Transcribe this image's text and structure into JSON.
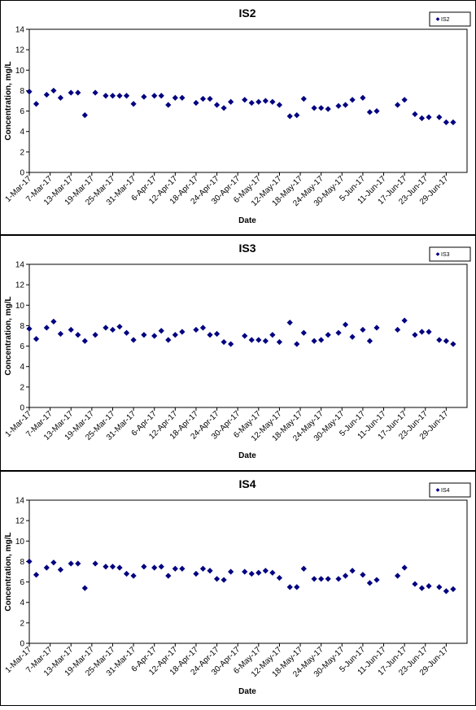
{
  "chart_data": [
    {
      "type": "scatter",
      "title": "IS2",
      "xlabel": "Date",
      "ylabel": "Concentration, mg/L",
      "ylim": [
        0,
        14
      ],
      "yticks": [
        "0",
        "2",
        "4",
        "6",
        "8",
        "10",
        "12",
        "14"
      ],
      "xticks": [
        "1-Mar-17",
        "7-Mar-17",
        "13-Mar-17",
        "19-Mar-17",
        "25-Mar-17",
        "31-Mar-17",
        "6-Apr-17",
        "12-Apr-17",
        "18-Apr-17",
        "24-Apr-17",
        "30-Apr-17",
        "6-May-17",
        "12-May-17",
        "18-May-17",
        "24-May-17",
        "30-May-17",
        "5-Jun-17",
        "11-Jun-17",
        "17-Jun-17",
        "23-Jun-17",
        "29-Jun-17"
      ],
      "legend": "top-right",
      "series": [
        {
          "name": "IS2",
          "color": "#000080",
          "marker": "diamond",
          "points": [
            [
              "1-Mar-17",
              7.9
            ],
            [
              "3-Mar-17",
              6.7
            ],
            [
              "6-Mar-17",
              7.6
            ],
            [
              "8-Mar-17",
              8.0
            ],
            [
              "10-Mar-17",
              7.3
            ],
            [
              "13-Mar-17",
              7.8
            ],
            [
              "15-Mar-17",
              7.8
            ],
            [
              "17-Mar-17",
              5.6
            ],
            [
              "20-Mar-17",
              7.8
            ],
            [
              "23-Mar-17",
              7.5
            ],
            [
              "25-Mar-17",
              7.5
            ],
            [
              "27-Mar-17",
              7.5
            ],
            [
              "29-Mar-17",
              7.5
            ],
            [
              "31-Mar-17",
              6.7
            ],
            [
              "3-Apr-17",
              7.4
            ],
            [
              "6-Apr-17",
              7.5
            ],
            [
              "8-Apr-17",
              7.5
            ],
            [
              "10-Apr-17",
              6.6
            ],
            [
              "12-Apr-17",
              7.3
            ],
            [
              "14-Apr-17",
              7.3
            ],
            [
              "18-Apr-17",
              6.8
            ],
            [
              "20-Apr-17",
              7.2
            ],
            [
              "22-Apr-17",
              7.2
            ],
            [
              "24-Apr-17",
              6.6
            ],
            [
              "26-Apr-17",
              6.3
            ],
            [
              "28-Apr-17",
              6.9
            ],
            [
              "2-May-17",
              7.1
            ],
            [
              "4-May-17",
              6.8
            ],
            [
              "6-May-17",
              6.9
            ],
            [
              "8-May-17",
              7.0
            ],
            [
              "10-May-17",
              6.9
            ],
            [
              "12-May-17",
              6.6
            ],
            [
              "15-May-17",
              5.5
            ],
            [
              "17-May-17",
              5.6
            ],
            [
              "19-May-17",
              7.2
            ],
            [
              "22-May-17",
              6.3
            ],
            [
              "24-May-17",
              6.3
            ],
            [
              "26-May-17",
              6.2
            ],
            [
              "29-May-17",
              6.5
            ],
            [
              "31-May-17",
              6.6
            ],
            [
              "2-Jun-17",
              7.1
            ],
            [
              "5-Jun-17",
              7.3
            ],
            [
              "7-Jun-17",
              5.9
            ],
            [
              "9-Jun-17",
              6.0
            ],
            [
              "15-Jun-17",
              6.6
            ],
            [
              "17-Jun-17",
              7.1
            ],
            [
              "20-Jun-17",
              5.7
            ],
            [
              "22-Jun-17",
              5.3
            ],
            [
              "24-Jun-17",
              5.4
            ],
            [
              "27-Jun-17",
              5.4
            ],
            [
              "29-Jun-17",
              4.9
            ],
            [
              "1-Jul-17",
              4.9
            ]
          ]
        }
      ]
    },
    {
      "type": "scatter",
      "title": "IS3",
      "xlabel": "Date",
      "ylabel": "Concentration, mg/L",
      "ylim": [
        0,
        14
      ],
      "yticks": [
        "0",
        "2",
        "4",
        "6",
        "8",
        "10",
        "12",
        "14"
      ],
      "xticks": [
        "1-Mar-17",
        "7-Mar-17",
        "13-Mar-17",
        "19-Mar-17",
        "25-Mar-17",
        "31-Mar-17",
        "6-Apr-17",
        "12-Apr-17",
        "18-Apr-17",
        "24-Apr-17",
        "30-Apr-17",
        "6-May-17",
        "12-May-17",
        "18-May-17",
        "24-May-17",
        "30-May-17",
        "5-Jun-17",
        "11-Jun-17",
        "17-Jun-17",
        "23-Jun-17",
        "29-Jun-17"
      ],
      "legend": "top-right",
      "series": [
        {
          "name": "IS3",
          "color": "#000080",
          "marker": "diamond",
          "points": [
            [
              "1-Mar-17",
              7.7
            ],
            [
              "3-Mar-17",
              6.7
            ],
            [
              "6-Mar-17",
              7.8
            ],
            [
              "8-Mar-17",
              8.4
            ],
            [
              "10-Mar-17",
              7.2
            ],
            [
              "13-Mar-17",
              7.6
            ],
            [
              "15-Mar-17",
              7.1
            ],
            [
              "17-Mar-17",
              6.5
            ],
            [
              "20-Mar-17",
              7.1
            ],
            [
              "23-Mar-17",
              7.8
            ],
            [
              "25-Mar-17",
              7.6
            ],
            [
              "27-Mar-17",
              7.9
            ],
            [
              "29-Mar-17",
              7.3
            ],
            [
              "31-Mar-17",
              6.6
            ],
            [
              "3-Apr-17",
              7.1
            ],
            [
              "6-Apr-17",
              7.0
            ],
            [
              "8-Apr-17",
              7.5
            ],
            [
              "10-Apr-17",
              6.6
            ],
            [
              "12-Apr-17",
              7.1
            ],
            [
              "14-Apr-17",
              7.4
            ],
            [
              "18-Apr-17",
              7.6
            ],
            [
              "20-Apr-17",
              7.8
            ],
            [
              "22-Apr-17",
              7.1
            ],
            [
              "24-Apr-17",
              7.2
            ],
            [
              "26-Apr-17",
              6.4
            ],
            [
              "28-Apr-17",
              6.2
            ],
            [
              "2-May-17",
              7.0
            ],
            [
              "4-May-17",
              6.6
            ],
            [
              "6-May-17",
              6.6
            ],
            [
              "8-May-17",
              6.5
            ],
            [
              "10-May-17",
              7.1
            ],
            [
              "12-May-17",
              6.4
            ],
            [
              "15-May-17",
              8.3
            ],
            [
              "17-May-17",
              6.2
            ],
            [
              "19-May-17",
              7.3
            ],
            [
              "22-May-17",
              6.5
            ],
            [
              "24-May-17",
              6.6
            ],
            [
              "26-May-17",
              7.1
            ],
            [
              "29-May-17",
              7.3
            ],
            [
              "31-May-17",
              8.1
            ],
            [
              "2-Jun-17",
              6.9
            ],
            [
              "5-Jun-17",
              7.6
            ],
            [
              "7-Jun-17",
              6.5
            ],
            [
              "9-Jun-17",
              7.8
            ],
            [
              "15-Jun-17",
              7.6
            ],
            [
              "17-Jun-17",
              8.5
            ],
            [
              "20-Jun-17",
              7.1
            ],
            [
              "22-Jun-17",
              7.4
            ],
            [
              "24-Jun-17",
              7.4
            ],
            [
              "27-Jun-17",
              6.6
            ],
            [
              "29-Jun-17",
              6.5
            ],
            [
              "1-Jul-17",
              6.2
            ]
          ]
        }
      ]
    },
    {
      "type": "scatter",
      "title": "IS4",
      "xlabel": "Date",
      "ylabel": "Concentration, mg/L",
      "ylim": [
        0,
        14
      ],
      "yticks": [
        "0",
        "2",
        "4",
        "6",
        "8",
        "10",
        "12",
        "14"
      ],
      "xticks": [
        "1-Mar-17",
        "7-Mar-17",
        "13-Mar-17",
        "19-Mar-17",
        "25-Mar-17",
        "31-Mar-17",
        "6-Apr-17",
        "12-Apr-17",
        "18-Apr-17",
        "24-Apr-17",
        "30-Apr-17",
        "6-May-17",
        "12-May-17",
        "18-May-17",
        "24-May-17",
        "30-May-17",
        "5-Jun-17",
        "11-Jun-17",
        "17-Jun-17",
        "23-Jun-17",
        "29-Jun-17"
      ],
      "legend": "top-right",
      "series": [
        {
          "name": "IS4",
          "color": "#000080",
          "marker": "diamond",
          "points": [
            [
              "1-Mar-17",
              8.0
            ],
            [
              "3-Mar-17",
              6.7
            ],
            [
              "6-Mar-17",
              7.4
            ],
            [
              "8-Mar-17",
              7.9
            ],
            [
              "10-Mar-17",
              7.2
            ],
            [
              "13-Mar-17",
              7.8
            ],
            [
              "15-Mar-17",
              7.8
            ],
            [
              "17-Mar-17",
              5.4
            ],
            [
              "20-Mar-17",
              7.8
            ],
            [
              "23-Mar-17",
              7.5
            ],
            [
              "25-Mar-17",
              7.5
            ],
            [
              "27-Mar-17",
              7.4
            ],
            [
              "29-Mar-17",
              6.8
            ],
            [
              "31-Mar-17",
              6.6
            ],
            [
              "3-Apr-17",
              7.5
            ],
            [
              "6-Apr-17",
              7.4
            ],
            [
              "8-Apr-17",
              7.5
            ],
            [
              "10-Apr-17",
              6.6
            ],
            [
              "12-Apr-17",
              7.3
            ],
            [
              "14-Apr-17",
              7.3
            ],
            [
              "18-Apr-17",
              6.8
            ],
            [
              "20-Apr-17",
              7.3
            ],
            [
              "22-Apr-17",
              7.1
            ],
            [
              "24-Apr-17",
              6.3
            ],
            [
              "26-Apr-17",
              6.2
            ],
            [
              "28-Apr-17",
              7.0
            ],
            [
              "2-May-17",
              7.0
            ],
            [
              "4-May-17",
              6.8
            ],
            [
              "6-May-17",
              6.9
            ],
            [
              "8-May-17",
              7.1
            ],
            [
              "10-May-17",
              6.9
            ],
            [
              "12-May-17",
              6.4
            ],
            [
              "15-May-17",
              5.5
            ],
            [
              "17-May-17",
              5.5
            ],
            [
              "19-May-17",
              7.3
            ],
            [
              "22-May-17",
              6.3
            ],
            [
              "24-May-17",
              6.3
            ],
            [
              "26-May-17",
              6.3
            ],
            [
              "29-May-17",
              6.3
            ],
            [
              "31-May-17",
              6.6
            ],
            [
              "2-Jun-17",
              7.1
            ],
            [
              "5-Jun-17",
              6.7
            ],
            [
              "7-Jun-17",
              5.9
            ],
            [
              "9-Jun-17",
              6.2
            ],
            [
              "15-Jun-17",
              6.6
            ],
            [
              "17-Jun-17",
              7.4
            ],
            [
              "20-Jun-17",
              5.8
            ],
            [
              "22-Jun-17",
              5.4
            ],
            [
              "24-Jun-17",
              5.6
            ],
            [
              "27-Jun-17",
              5.5
            ],
            [
              "29-Jun-17",
              5.1
            ],
            [
              "1-Jul-17",
              5.3
            ]
          ]
        }
      ]
    }
  ]
}
